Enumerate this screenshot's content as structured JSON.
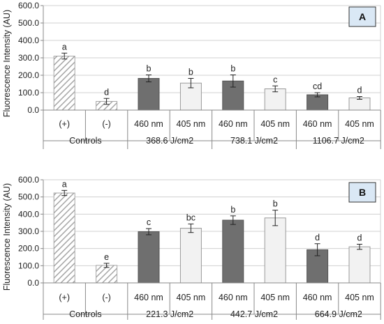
{
  "colors": {
    "dark_bar": "#6f6f6f",
    "light_bar": "#f2f2f2",
    "hatch_stroke": "#a6a6a6",
    "panel_label_bg": "#dae8f5",
    "axis": "#888888",
    "grid": "#d0d0d0"
  },
  "chart_data": [
    {
      "type": "bar",
      "panel_label": "A",
      "ylabel": "Fluorescence Intensity (AU)",
      "ylim": [
        0,
        600
      ],
      "yticks": [
        "0.0",
        "100.0",
        "200.0",
        "300.0",
        "400.0",
        "500.0",
        "600.0"
      ],
      "grid": true,
      "categories": [
        "(+)",
        "(-)",
        "460 nm",
        "405 nm",
        "460 nm",
        "405 nm",
        "460 nm",
        "405 nm"
      ],
      "groups": [
        {
          "label": "Controls",
          "span": 2
        },
        {
          "label": "368.6 J/cm2",
          "span": 2
        },
        {
          "label": "738.1 J/cm2",
          "span": 2
        },
        {
          "label": "1106.7 J/cm2",
          "span": 2
        }
      ],
      "values": [
        310,
        50,
        182,
        155,
        167,
        122,
        88,
        70
      ],
      "errors": [
        17,
        17,
        20,
        27,
        35,
        17,
        12,
        8
      ],
      "letters": [
        "a",
        "d",
        "b",
        "b",
        "b",
        "c",
        "cd",
        "d"
      ],
      "styles": [
        "hatch",
        "hatch",
        "dark",
        "light",
        "dark",
        "light",
        "dark",
        "light"
      ]
    },
    {
      "type": "bar",
      "panel_label": "B",
      "ylabel": "Fluorescence Intensity (AU)",
      "ylim": [
        0,
        600
      ],
      "yticks": [
        "0.0",
        "100.0",
        "200.0",
        "300.0",
        "400.0",
        "500.0",
        "600.0"
      ],
      "grid": true,
      "categories": [
        "(+)",
        "(-)",
        "460 nm",
        "405 nm",
        "460 nm",
        "405 nm",
        "460 nm",
        "405 nm"
      ],
      "groups": [
        {
          "label": "Controls",
          "span": 2
        },
        {
          "label": "221.3 J/cm2",
          "span": 2
        },
        {
          "label": "442.7 J/cm2",
          "span": 2
        },
        {
          "label": "664.9 J/cm2",
          "span": 2
        }
      ],
      "values": [
        523,
        102,
        298,
        318,
        365,
        378,
        193,
        210
      ],
      "errors": [
        15,
        12,
        18,
        25,
        25,
        45,
        35,
        15
      ],
      "letters": [
        "a",
        "e",
        "c",
        "bc",
        "b",
        "b",
        "d",
        "d"
      ],
      "styles": [
        "hatch",
        "hatch",
        "dark",
        "light",
        "dark",
        "light",
        "dark",
        "light"
      ]
    }
  ]
}
